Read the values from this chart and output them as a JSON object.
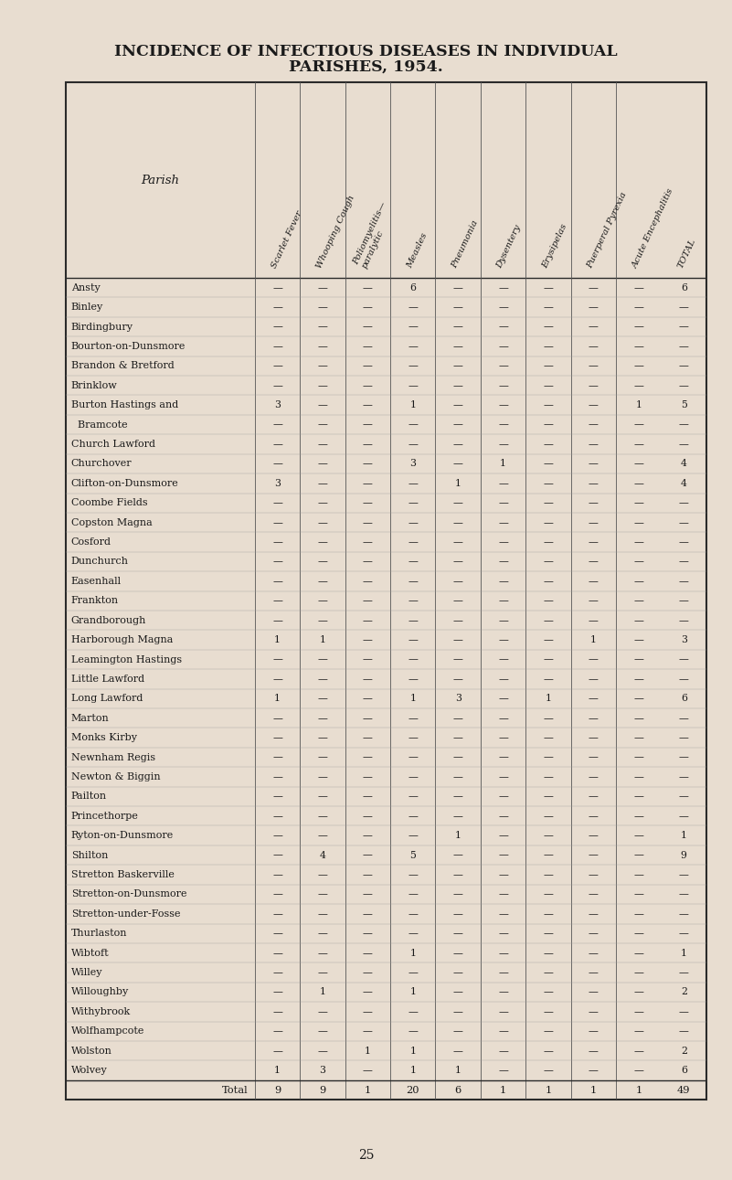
{
  "title_line1": "INCIDENCE OF INFECTIOUS DISEASES IN INDIVIDUAL",
  "title_line2": "PARISHES, 1954.",
  "background_color": "#e8ddd0",
  "page_number": "25",
  "col_labels": [
    "Scarlet Fever",
    "Whooping Cough",
    "Poliomyelitis—\nparalytic",
    "Measles",
    "Pneumonia",
    "Dysentery",
    "Erysipelas",
    "Puerperal Pyrexia",
    "Acute Encephalitis",
    "TOTAL"
  ],
  "parishes": [
    "Ansty",
    "Binley",
    "Birdingbury",
    "Bourton-on-Dunsmore",
    "Brandon & Bretford",
    "Brinklow",
    "Burton Hastings and",
    "  Bramcote",
    "Church Lawford",
    "Churchover",
    "Clifton-on-Dunsmore",
    "Coombe Fields",
    "Copston Magna",
    "Cosford",
    "Dunchurch",
    "Easenhall",
    "Frankton",
    "Grandborough",
    "Harborough Magna",
    "Leamington Hastings",
    "Little Lawford",
    "Long Lawford",
    "Marton",
    "Monks Kirby",
    "Newnham Regis",
    "Newton & Biggin",
    "Pailton",
    "Princethorpe",
    "Ryton-on-Dunsmore",
    "Shilton",
    "Stretton Baskerville",
    "Stretton-on-Dunsmore",
    "Stretton-under-Fosse",
    "Thurlaston",
    "Wibtoft",
    "Willey",
    "Willoughby",
    "Withybrook",
    "Wolfhampcote",
    "Wolston",
    "Wolvey"
  ],
  "data": [
    [
      0,
      0,
      0,
      6,
      0,
      0,
      0,
      0,
      0,
      6
    ],
    [
      0,
      0,
      0,
      0,
      0,
      0,
      0,
      0,
      0,
      0
    ],
    [
      0,
      0,
      0,
      0,
      0,
      0,
      0,
      0,
      0,
      0
    ],
    [
      0,
      0,
      0,
      0,
      0,
      0,
      0,
      0,
      0,
      0
    ],
    [
      0,
      0,
      0,
      0,
      0,
      0,
      0,
      0,
      0,
      0
    ],
    [
      0,
      0,
      0,
      0,
      0,
      0,
      0,
      0,
      0,
      0
    ],
    [
      3,
      0,
      0,
      1,
      0,
      0,
      0,
      0,
      1,
      5
    ],
    [
      0,
      0,
      0,
      0,
      0,
      0,
      0,
      0,
      0,
      0
    ],
    [
      0,
      0,
      0,
      0,
      0,
      0,
      0,
      0,
      0,
      0
    ],
    [
      0,
      0,
      0,
      3,
      0,
      1,
      0,
      0,
      0,
      4
    ],
    [
      3,
      0,
      0,
      0,
      1,
      0,
      0,
      0,
      0,
      4
    ],
    [
      0,
      0,
      0,
      0,
      0,
      0,
      0,
      0,
      0,
      0
    ],
    [
      0,
      0,
      0,
      0,
      0,
      0,
      0,
      0,
      0,
      0
    ],
    [
      0,
      0,
      0,
      0,
      0,
      0,
      0,
      0,
      0,
      0
    ],
    [
      0,
      0,
      0,
      0,
      0,
      0,
      0,
      0,
      0,
      0
    ],
    [
      0,
      0,
      0,
      0,
      0,
      0,
      0,
      0,
      0,
      0
    ],
    [
      0,
      0,
      0,
      0,
      0,
      0,
      0,
      0,
      0,
      0
    ],
    [
      0,
      0,
      0,
      0,
      0,
      0,
      0,
      0,
      0,
      0
    ],
    [
      1,
      1,
      0,
      0,
      0,
      0,
      0,
      1,
      0,
      3
    ],
    [
      0,
      0,
      0,
      0,
      0,
      0,
      0,
      0,
      0,
      0
    ],
    [
      0,
      0,
      0,
      0,
      0,
      0,
      0,
      0,
      0,
      0
    ],
    [
      1,
      0,
      0,
      1,
      3,
      0,
      1,
      0,
      0,
      6
    ],
    [
      0,
      0,
      0,
      0,
      0,
      0,
      0,
      0,
      0,
      0
    ],
    [
      0,
      0,
      0,
      0,
      0,
      0,
      0,
      0,
      0,
      0
    ],
    [
      0,
      0,
      0,
      0,
      0,
      0,
      0,
      0,
      0,
      0
    ],
    [
      0,
      0,
      0,
      0,
      0,
      0,
      0,
      0,
      0,
      0
    ],
    [
      0,
      0,
      0,
      0,
      0,
      0,
      0,
      0,
      0,
      0
    ],
    [
      0,
      0,
      0,
      0,
      0,
      0,
      0,
      0,
      0,
      0
    ],
    [
      0,
      0,
      0,
      0,
      1,
      0,
      0,
      0,
      0,
      1
    ],
    [
      0,
      4,
      0,
      5,
      0,
      0,
      0,
      0,
      0,
      9
    ],
    [
      0,
      0,
      0,
      0,
      0,
      0,
      0,
      0,
      0,
      0
    ],
    [
      0,
      0,
      0,
      0,
      0,
      0,
      0,
      0,
      0,
      0
    ],
    [
      0,
      0,
      0,
      0,
      0,
      0,
      0,
      0,
      0,
      0
    ],
    [
      0,
      0,
      0,
      0,
      0,
      0,
      0,
      0,
      0,
      0
    ],
    [
      0,
      0,
      0,
      1,
      0,
      0,
      0,
      0,
      0,
      1
    ],
    [
      0,
      0,
      0,
      0,
      0,
      0,
      0,
      0,
      0,
      0
    ],
    [
      0,
      1,
      0,
      1,
      0,
      0,
      0,
      0,
      0,
      2
    ],
    [
      0,
      0,
      0,
      0,
      0,
      0,
      0,
      0,
      0,
      0
    ],
    [
      0,
      0,
      0,
      0,
      0,
      0,
      0,
      0,
      0,
      0
    ],
    [
      0,
      0,
      1,
      1,
      0,
      0,
      0,
      0,
      0,
      2
    ],
    [
      1,
      3,
      0,
      1,
      1,
      0,
      0,
      0,
      0,
      6
    ]
  ],
  "totals": [
    9,
    9,
    1,
    20,
    6,
    1,
    1,
    1,
    1,
    49
  ],
  "parish_is_indent": [
    false,
    false,
    false,
    false,
    false,
    false,
    false,
    true,
    false,
    false,
    false,
    false,
    false,
    false,
    false,
    false,
    false,
    false,
    false,
    false,
    false,
    false,
    false,
    false,
    false,
    false,
    false,
    false,
    false,
    false,
    false,
    false,
    false,
    false,
    false,
    false,
    false,
    false,
    false,
    false,
    false
  ]
}
